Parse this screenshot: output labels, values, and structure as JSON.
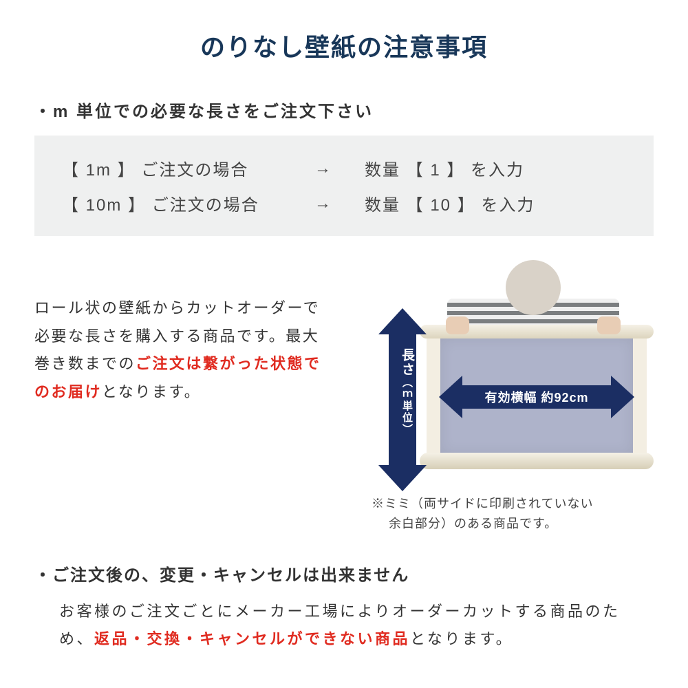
{
  "colors": {
    "title": "#183759",
    "body_text": "#333333",
    "red_emphasis": "#e02b20",
    "example_bg": "#eff0f0",
    "arrow_fill": "#1b2e63",
    "sample_fill": "#aeb3ca",
    "roll_fill": "#f3eee2"
  },
  "title": "のりなし壁紙の注意事項",
  "section1": {
    "heading": "・m 単位での必要な長さをご注文下さい",
    "examples": [
      {
        "left": "【  1m 】 ご注文の場合",
        "arrow": "→",
        "right": "数量 【  1  】 を入力"
      },
      {
        "left": "【 10m 】 ご注文の場合",
        "arrow": "→",
        "right": "数量 【  10  】 を入力"
      }
    ],
    "description_pre": "ロール状の壁紙からカットオーダーで必要な長さを購入する商品です。最大巻き数までの",
    "description_red": "ご注文は繋がった状態でのお届け",
    "description_post": "となります。"
  },
  "diagram": {
    "v_label_main": "長さ",
    "v_label_paren": "（ｍ単位）",
    "h_label": "有効横幅  約92cm",
    "note_line1": "※ミミ（両サイドに印刷されていない",
    "note_line2": "　 余白部分）のある商品です。"
  },
  "section2": {
    "heading": "・ご注文後の、変更・キャンセルは出来ません",
    "body_pre": "お客様のご注文ごとにメーカー工場によりオーダーカットする商品のため、",
    "body_red": "返品・交換・キャンセルができない商品",
    "body_post": "となります。"
  }
}
